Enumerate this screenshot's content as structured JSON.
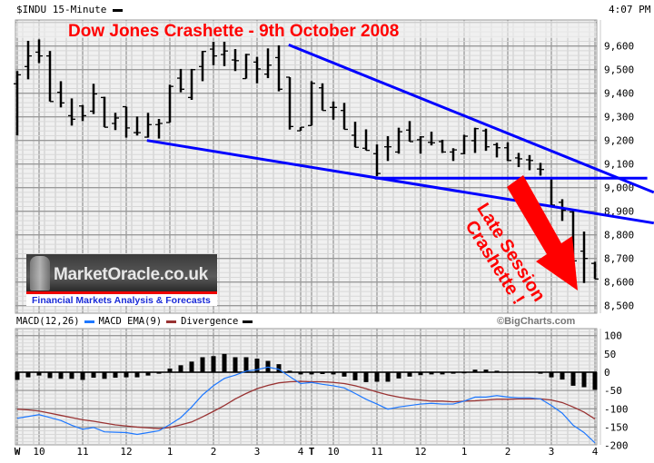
{
  "header": {
    "symbol": "$INDU 15-Minute",
    "time": "4:07 PM"
  },
  "logo": {
    "name": "MarketOracle.co.uk",
    "tagline": "Financial Markets Analysis & Forecasts"
  },
  "annotation": {
    "line1": "Late Session",
    "line2": "Crashette !",
    "color": "#ff0000"
  },
  "credit": "©BigCharts.com",
  "macd_legend": {
    "macd": "MACD(12,26)",
    "ema": "MACD EMA(9)",
    "divergence": "Divergence"
  },
  "colors": {
    "price": "#000000",
    "trendline": "#0000ff",
    "macd": "#1e78ff",
    "ema": "#993333",
    "divergence": "#000000",
    "title": "#ff0000",
    "background": "#f0f0f0"
  },
  "chart_data": [
    {
      "type": "ohlc",
      "title": "Dow Jones Crashette -  9th October 2008",
      "ylim": [
        8450,
        9700
      ],
      "y_ticks": [
        9600,
        9500,
        9400,
        9300,
        9200,
        9100,
        9000,
        8900,
        8800,
        8700,
        8600,
        8500
      ],
      "y_tick_labels": [
        "9,600",
        "9,500",
        "9,400",
        "9,300",
        "9,200",
        "9,100",
        "9,000",
        "8,900",
        "8,800",
        "8,700",
        "8,600",
        "8,500"
      ],
      "x_ticks": [
        {
          "label": "W",
          "bar": 0
        },
        {
          "label": "10",
          "bar": 2
        },
        {
          "label": "11",
          "bar": 6
        },
        {
          "label": "12",
          "bar": 10
        },
        {
          "label": "1",
          "bar": 14
        },
        {
          "label": "2",
          "bar": 18
        },
        {
          "label": "3",
          "bar": 22
        },
        {
          "label": "4",
          "bar": 26
        },
        {
          "label": "T",
          "bar": 27
        },
        {
          "label": "10",
          "bar": 29
        },
        {
          "label": "11",
          "bar": 33
        },
        {
          "label": "12",
          "bar": 37
        },
        {
          "label": "1",
          "bar": 41
        },
        {
          "label": "2",
          "bar": 45
        },
        {
          "label": "3",
          "bar": 49
        },
        {
          "label": "4",
          "bar": 53
        }
      ],
      "grid": true,
      "bars_ohlc": [
        [
          9440,
          9494,
          9221,
          9478
        ],
        [
          9513,
          9622,
          9459,
          9558
        ],
        [
          9574,
          9628,
          9528,
          9558
        ],
        [
          9558,
          9579,
          9365,
          9365
        ],
        [
          9404,
          9451,
          9340,
          9359
        ],
        [
          9305,
          9378,
          9263,
          9290
        ],
        [
          9346,
          9350,
          9282,
          9305
        ],
        [
          9324,
          9440,
          9312,
          9397
        ],
        [
          9382,
          9385,
          9256,
          9256
        ],
        [
          9272,
          9317,
          9244,
          9295
        ],
        [
          9343,
          9343,
          9212,
          9253
        ],
        [
          9233,
          9301,
          9221,
          9233
        ],
        [
          9214,
          9317,
          9212,
          9267
        ],
        [
          9267,
          9291,
          9208,
          9272
        ],
        [
          9276,
          9436,
          9276,
          9429
        ],
        [
          9464,
          9503,
          9404,
          9417
        ],
        [
          9382,
          9503,
          9372,
          9500
        ],
        [
          9513,
          9579,
          9451,
          9577
        ],
        [
          9587,
          9618,
          9519,
          9558
        ],
        [
          9564,
          9618,
          9515,
          9579
        ],
        [
          9541,
          9587,
          9494,
          9538
        ],
        [
          9462,
          9567,
          9462,
          9564
        ],
        [
          9532,
          9554,
          9442,
          9503
        ],
        [
          9481,
          9590,
          9464,
          9519
        ],
        [
          9551,
          9603,
          9408,
          9417
        ],
        [
          9468,
          9468,
          9246,
          9259
        ],
        [
          9241,
          9256,
          9241,
          9256
        ],
        [
          9263,
          9451,
          9263,
          9442
        ],
        [
          9423,
          9442,
          9327,
          9327
        ],
        [
          9340,
          9365,
          9288,
          9340
        ],
        [
          9327,
          9359,
          9247,
          9247
        ],
        [
          9222,
          9279,
          9171,
          9171
        ],
        [
          9167,
          9247,
          9158,
          9158
        ],
        [
          9144,
          9183,
          9049,
          9060
        ],
        [
          9173,
          9218,
          9113,
          9173
        ],
        [
          9151,
          9254,
          9144,
          9237
        ],
        [
          9244,
          9282,
          9195,
          9195
        ],
        [
          9203,
          9218,
          9144,
          9215
        ],
        [
          9192,
          9237,
          9179,
          9190
        ],
        [
          9195,
          9203,
          9147,
          9151
        ],
        [
          9151,
          9167,
          9113,
          9160
        ],
        [
          9144,
          9224,
          9141,
          9218
        ],
        [
          9199,
          9254,
          9147,
          9250
        ],
        [
          9241,
          9250,
          9156,
          9173
        ],
        [
          9182,
          9190,
          9128,
          9169
        ],
        [
          9169,
          9192,
          9113,
          9115
        ],
        [
          9126,
          9147,
          9087,
          9122
        ],
        [
          9118,
          9138,
          9074,
          9115
        ],
        [
          9079,
          9105,
          9051,
          9077
        ],
        [
          9038,
          9038,
          8926,
          8926
        ],
        [
          8938,
          8951,
          8859,
          8904
        ],
        [
          8897,
          8904,
          8686,
          8690
        ],
        [
          8731,
          8814,
          8596,
          8700
        ],
        [
          8679,
          8686,
          8613,
          8613
        ]
      ],
      "trendlines": [
        {
          "from": [
            24.9,
            9605
          ],
          "to": [
            58.4,
            8980
          ]
        },
        {
          "from": [
            11.9,
            9200
          ],
          "to": [
            58.4,
            8850
          ]
        },
        {
          "from": [
            32.8,
            9040
          ],
          "to": [
            57.8,
            9040
          ]
        }
      ]
    },
    {
      "type": "macd",
      "ylim": [
        -210,
        110
      ],
      "y_ticks": [
        100,
        50,
        0,
        -50,
        -100,
        -150,
        -200
      ],
      "y_tick_labels": [
        "100",
        "50",
        "0",
        "-50",
        "-100",
        "-150",
        "-200"
      ],
      "macd": [
        -126,
        -121,
        -116,
        -124,
        -132,
        -145,
        -156,
        -151,
        -163,
        -164,
        -165,
        -170,
        -165,
        -160,
        -143,
        -124,
        -95,
        -62,
        -37,
        -17,
        -8,
        3,
        7,
        14,
        8,
        -12,
        -31,
        -28,
        -33,
        -37,
        -43,
        -58,
        -74,
        -87,
        -101,
        -95,
        -91,
        -87,
        -85,
        -87,
        -87,
        -79,
        -68,
        -68,
        -64,
        -68,
        -70,
        -70,
        -73,
        -91,
        -112,
        -145,
        -165,
        -193
      ],
      "ema": [
        -101,
        -103,
        -106,
        -112,
        -118,
        -124,
        -130,
        -134,
        -139,
        -144,
        -147,
        -150,
        -152,
        -154,
        -151,
        -144,
        -136,
        -122,
        -107,
        -91,
        -73,
        -58,
        -45,
        -36,
        -29,
        -26,
        -25,
        -26,
        -26,
        -28,
        -31,
        -37,
        -45,
        -54,
        -62,
        -68,
        -73,
        -76,
        -79,
        -79,
        -81,
        -79,
        -78,
        -76,
        -74,
        -74,
        -73,
        -73,
        -73,
        -76,
        -83,
        -95,
        -109,
        -128
      ],
      "divergence": [
        -21,
        -14,
        -9,
        -16,
        -18,
        -18,
        -21,
        -15,
        -18,
        -15,
        -14,
        -14,
        -9,
        -4,
        10,
        19,
        29,
        41,
        44,
        50,
        41,
        41,
        37,
        31,
        22,
        4,
        -6,
        -6,
        -5,
        -6,
        -12,
        -22,
        -27,
        -26,
        -26,
        -17,
        -12,
        -8,
        -6,
        -6,
        -4,
        -3,
        7,
        7,
        4,
        1,
        1,
        0,
        -4,
        -14,
        -20,
        -37,
        -41,
        -48
      ]
    }
  ]
}
